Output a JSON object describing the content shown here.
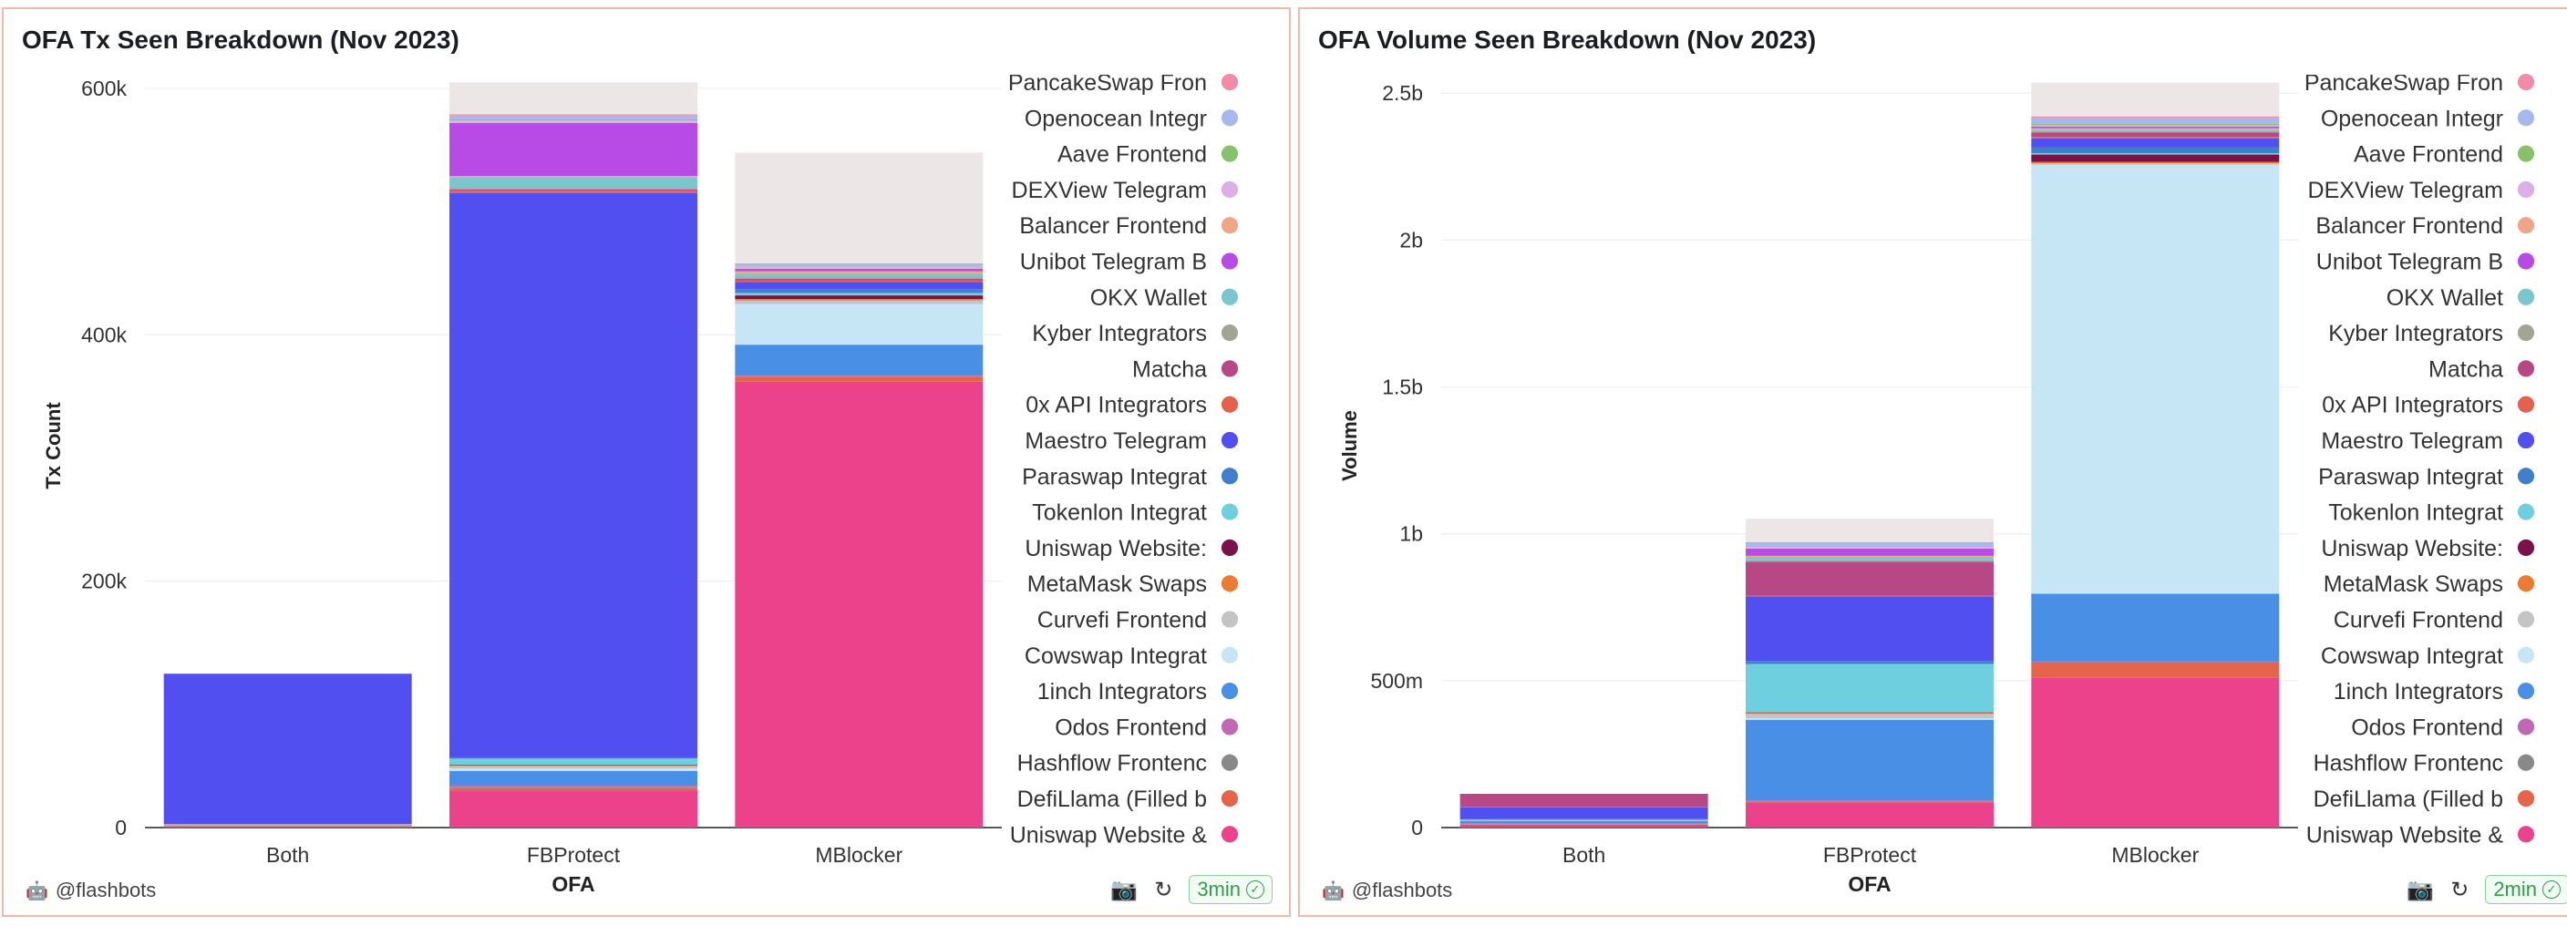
{
  "footer": {
    "brand": "@flashbots"
  },
  "legend_entries": [
    {
      "label": "PancakeSwap Fron",
      "color": "#f28aa8"
    },
    {
      "label": "Openocean Integr",
      "color": "#a6b9ee"
    },
    {
      "label": "Aave Frontend",
      "color": "#86c26b"
    },
    {
      "label": "DEXView Telegram",
      "color": "#dcaee8"
    },
    {
      "label": "Balancer Frontend",
      "color": "#f0a585"
    },
    {
      "label": "Unibot Telegram B",
      "color": "#b84ae6"
    },
    {
      "label": "OKX Wallet",
      "color": "#79c6cf"
    },
    {
      "label": "Kyber Integrators",
      "color": "#a2a593"
    },
    {
      "label": "Matcha",
      "color": "#b84785"
    },
    {
      "label": "0x API Integrators",
      "color": "#e5604d"
    },
    {
      "label": "Maestro Telegram",
      "color": "#524ff0"
    },
    {
      "label": "Paraswap Integrat",
      "color": "#3f7fcc"
    },
    {
      "label": "Tokenlon Integrat",
      "color": "#6ecfdf"
    },
    {
      "label": "Uniswap Website:",
      "color": "#7a1148"
    },
    {
      "label": "MetaMask Swaps",
      "color": "#ec7a32"
    },
    {
      "label": "Curvefi Frontend",
      "color": "#c4c4c4"
    },
    {
      "label": "Cowswap Integrat",
      "color": "#c6e6f6"
    },
    {
      "label": "1inch Integrators",
      "color": "#4a8fe6"
    },
    {
      "label": "Odos Frontend",
      "color": "#c267b5"
    },
    {
      "label": "Hashflow Frontenc",
      "color": "#898989"
    },
    {
      "label": "DefiLlama (Filled b",
      "color": "#e6654a"
    },
    {
      "label": "Uniswap Website &",
      "color": "#ec428c"
    }
  ],
  "chart_data": [
    {
      "type": "bar",
      "stacked": true,
      "title": "OFA Tx Seen Breakdown (Nov 2023)",
      "xlabel": "OFA",
      "ylabel": "Tx Count",
      "categories": [
        "Both",
        "FBProtect",
        "MBlocker"
      ],
      "ylim": [
        0,
        620000
      ],
      "yticks": [
        0,
        200000,
        400000,
        600000
      ],
      "ytick_labels": [
        "0",
        "200k",
        "400k",
        "600k"
      ],
      "refresh_age": "3min",
      "series": [
        {
          "color": "#ec428c",
          "values": [
            1000,
            30000,
            362000
          ]
        },
        {
          "color": "#e6654a",
          "values": [
            300,
            2000,
            4000
          ]
        },
        {
          "color": "#898989",
          "values": [
            300,
            1000,
            500
          ]
        },
        {
          "color": "#c267b5",
          "values": [
            200,
            1000,
            500
          ]
        },
        {
          "color": "#4a8fe6",
          "values": [
            300,
            12000,
            25000
          ]
        },
        {
          "color": "#c6e6f6",
          "values": [
            200,
            2000,
            33000
          ]
        },
        {
          "color": "#c4c4c4",
          "values": [
            100,
            2000,
            3000
          ]
        },
        {
          "color": "#ec7a32",
          "values": [
            100,
            500,
            1000
          ]
        },
        {
          "color": "#7a1148",
          "values": [
            100,
            500,
            3000
          ]
        },
        {
          "color": "#6ecfdf",
          "values": [
            200,
            5000,
            2000
          ]
        },
        {
          "color": "#3f7fcc",
          "values": [
            100,
            1000,
            3000
          ]
        },
        {
          "color": "#524ff0",
          "values": [
            122000,
            458000,
            6000
          ]
        },
        {
          "color": "#e5604d",
          "values": [
            0,
            2000,
            1000
          ]
        },
        {
          "color": "#b84785",
          "values": [
            0,
            1000,
            1500
          ]
        },
        {
          "color": "#a2a593",
          "values": [
            0,
            1000,
            1000
          ]
        },
        {
          "color": "#79c6cf",
          "values": [
            0,
            9000,
            3000
          ]
        },
        {
          "color": "#f0a585",
          "values": [
            0,
            1000,
            2000
          ]
        },
        {
          "color": "#b84ae6",
          "values": [
            0,
            43000,
            2000
          ]
        },
        {
          "color": "#dcaee8",
          "values": [
            0,
            2000,
            2000
          ]
        },
        {
          "color": "#86c26b",
          "values": [
            0,
            1000,
            500
          ]
        },
        {
          "color": "#a6b9ee",
          "values": [
            0,
            3000,
            1500
          ]
        },
        {
          "color": "#f28aa8",
          "values": [
            0,
            1000,
            500
          ]
        },
        {
          "color": "#ede6e6",
          "values": [
            0,
            26000,
            90000
          ]
        }
      ]
    },
    {
      "type": "bar",
      "stacked": true,
      "title": "OFA Volume Seen Breakdown (Nov 2023)",
      "xlabel": "OFA",
      "ylabel": "Volume",
      "categories": [
        "Both",
        "FBProtect",
        "MBlocker"
      ],
      "ylim": [
        0,
        2600000000
      ],
      "yticks": [
        0,
        500000000,
        1000000000,
        1500000000,
        2000000000,
        2500000000
      ],
      "ytick_labels": [
        "0",
        "500m",
        "1b",
        "1.5b",
        "2b",
        "2.5b"
      ],
      "refresh_age": "2min",
      "series": [
        {
          "color": "#ec428c",
          "values": [
            10000000,
            85000000,
            510000000
          ]
        },
        {
          "color": "#e6654a",
          "values": [
            1000000,
            3000000,
            50000000
          ]
        },
        {
          "color": "#898989",
          "values": [
            1000000,
            2000000,
            3000000
          ]
        },
        {
          "color": "#c267b5",
          "values": [
            1000000,
            2000000,
            3000000
          ]
        },
        {
          "color": "#4a8fe6",
          "values": [
            10000000,
            275000000,
            230000000
          ]
        },
        {
          "color": "#c6e6f6",
          "values": [
            1000000,
            5000000,
            1460000000
          ]
        },
        {
          "color": "#c4c4c4",
          "values": [
            1000000,
            15000000,
            5000000
          ]
        },
        {
          "color": "#ec7a32",
          "values": [
            1000000,
            3000000,
            5000000
          ]
        },
        {
          "color": "#7a1148",
          "values": [
            1000000,
            2000000,
            25000000
          ]
        },
        {
          "color": "#6ecfdf",
          "values": [
            1000000,
            165000000,
            5000000
          ]
        },
        {
          "color": "#3f7fcc",
          "values": [
            1000000,
            10000000,
            20000000
          ]
        },
        {
          "color": "#524ff0",
          "values": [
            40000000,
            220000000,
            30000000
          ]
        },
        {
          "color": "#e5604d",
          "values": [
            1000000,
            3000000,
            5000000
          ]
        },
        {
          "color": "#b84785",
          "values": [
            45000000,
            115000000,
            15000000
          ]
        },
        {
          "color": "#a2a593",
          "values": [
            0,
            5000000,
            5000000
          ]
        },
        {
          "color": "#79c6cf",
          "values": [
            0,
            10000000,
            5000000
          ]
        },
        {
          "color": "#f0a585",
          "values": [
            0,
            5000000,
            5000000
          ]
        },
        {
          "color": "#b84ae6",
          "values": [
            0,
            25000000,
            5000000
          ]
        },
        {
          "color": "#dcaee8",
          "values": [
            0,
            5000000,
            5000000
          ]
        },
        {
          "color": "#86c26b",
          "values": [
            0,
            3000000,
            5000000
          ]
        },
        {
          "color": "#a6b9ee",
          "values": [
            0,
            10000000,
            20000000
          ]
        },
        {
          "color": "#f28aa8",
          "values": [
            0,
            3000000,
            5000000
          ]
        },
        {
          "color": "#ede6e6",
          "values": [
            0,
            80000000,
            115000000
          ]
        }
      ]
    }
  ]
}
